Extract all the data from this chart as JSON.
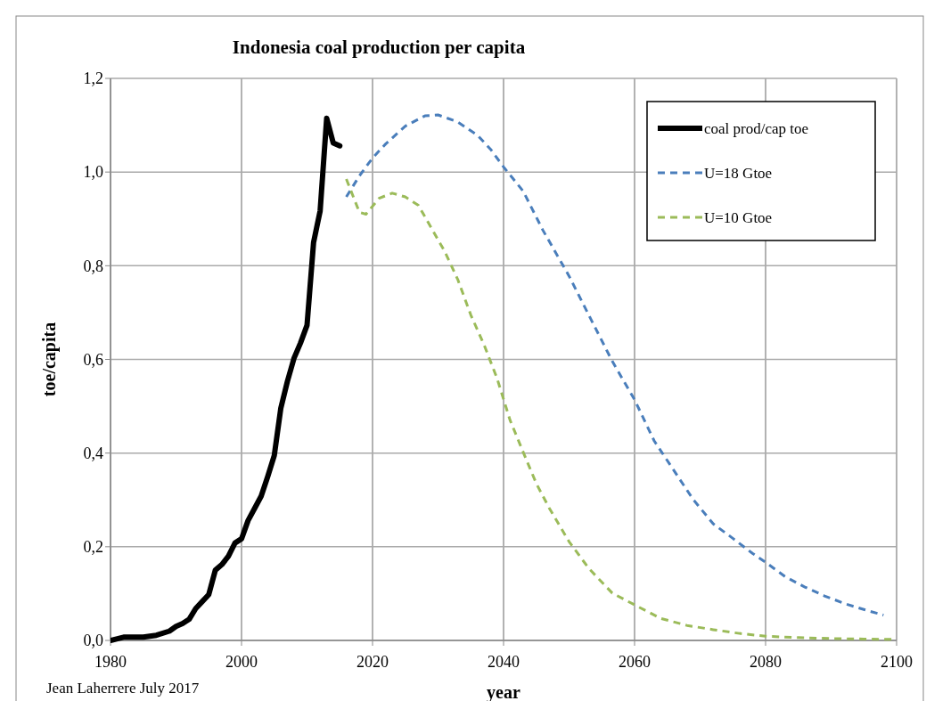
{
  "chart_data": {
    "type": "line",
    "title": "Indonesia  coal production per capita",
    "xlabel": "year",
    "ylabel": "toe/capita",
    "annotations": [
      "Jean Laherrere  July 2017"
    ],
    "xlim": [
      1980,
      2100
    ],
    "xticks": [
      1980,
      2000,
      2020,
      2040,
      2060,
      2080,
      2100
    ],
    "ylim": [
      0,
      1.2
    ],
    "yticks": [
      {
        "value": 0,
        "label": "0,0"
      },
      {
        "value": 0.2,
        "label": "0,2"
      },
      {
        "value": 0.4,
        "label": "0,4"
      },
      {
        "value": 0.6,
        "label": "0,6"
      },
      {
        "value": 0.8,
        "label": "0,8"
      },
      {
        "value": 1,
        "label": "1,0"
      },
      {
        "value": 1.2,
        "label": "1,2"
      }
    ],
    "grid": true,
    "legend": "top right",
    "series": [
      {
        "name": "coal prod/cap toe",
        "color": "#000000",
        "line_style": "solid",
        "x": [
          1980,
          1982,
          1985,
          1987,
          1989,
          1990,
          1991,
          1992,
          1993,
          1994,
          1995,
          1996,
          1997,
          1998,
          1999,
          2000,
          2001,
          2002,
          2003,
          2004,
          2005,
          2006,
          2007,
          2008,
          2009,
          2010,
          2011,
          2012,
          2013,
          2014,
          2015
        ],
        "values": [
          0.0,
          0.007,
          0.007,
          0.011,
          0.02,
          0.03,
          0.036,
          0.045,
          0.068,
          0.083,
          0.098,
          0.15,
          0.162,
          0.18,
          0.208,
          0.217,
          0.256,
          0.282,
          0.308,
          0.35,
          0.395,
          0.496,
          0.553,
          0.602,
          0.635,
          0.673,
          0.85,
          0.917,
          1.115,
          1.062,
          1.056
        ]
      },
      {
        "name": "U=18 Gtoe",
        "color": "#4a7ebb",
        "line_style": "dashed",
        "x": [
          2016,
          2018,
          2020,
          2022,
          2025,
          2028,
          2030,
          2033,
          2036,
          2038,
          2040,
          2043,
          2046,
          2050,
          2053,
          2056.6,
          2060,
          2063,
          2066,
          2069,
          2072,
          2075,
          2078,
          2080,
          2083,
          2086,
          2089,
          2092,
          2095,
          2098
        ],
        "values": [
          0.947,
          0.992,
          1.03,
          1.06,
          1.098,
          1.12,
          1.122,
          1.107,
          1.079,
          1.049,
          1.011,
          0.959,
          0.876,
          0.778,
          0.695,
          0.596,
          0.514,
          0.426,
          0.363,
          0.3,
          0.249,
          0.218,
          0.186,
          0.167,
          0.136,
          0.114,
          0.095,
          0.079,
          0.066,
          0.054
        ]
      },
      {
        "name": "U=10 Gtoe",
        "color": "#9bbb59",
        "line_style": "dashed",
        "x": [
          2016,
          2018,
          2019,
          2021,
          2023,
          2025,
          2027,
          2029,
          2031,
          2033,
          2035,
          2037,
          2039,
          2041,
          2043,
          2045,
          2047,
          2050,
          2053,
          2056.6,
          2060,
          2064,
          2068,
          2072,
          2076,
          2080,
          2085,
          2090,
          2095,
          2100
        ],
        "values": [
          0.985,
          0.914,
          0.91,
          0.944,
          0.955,
          0.947,
          0.929,
          0.88,
          0.831,
          0.771,
          0.695,
          0.632,
          0.56,
          0.47,
          0.402,
          0.335,
          0.282,
          0.211,
          0.154,
          0.101,
          0.076,
          0.047,
          0.032,
          0.023,
          0.015,
          0.009,
          0.006,
          0.004,
          0.003,
          0.002
        ]
      }
    ]
  }
}
